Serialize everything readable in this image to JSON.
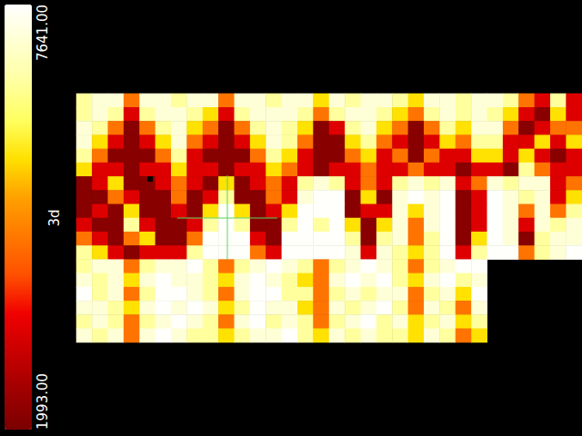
{
  "chart_data": {
    "type": "heatmap",
    "ylabel": "3d",
    "tick_labels": false,
    "cells": [
      [
        6600,
        7200,
        7200,
        4500,
        7200,
        7200,
        6600,
        7200,
        7200,
        4500,
        7200,
        7200,
        6600,
        7200,
        7200,
        5600,
        7200,
        6600,
        7200,
        7200,
        6600,
        5600,
        7200,
        7200,
        6600,
        7200,
        7200,
        6600,
        4500,
        3300,
        6600,
        3300
      ],
      [
        6600,
        7200,
        6600,
        3300,
        6600,
        7200,
        7200,
        6600,
        5600,
        3300,
        6600,
        7200,
        7200,
        7200,
        6600,
        4500,
        6600,
        7200,
        7200,
        6600,
        5600,
        4500,
        6600,
        7200,
        6600,
        7200,
        6600,
        5600,
        3300,
        2200,
        5600,
        3300
      ],
      [
        7200,
        6600,
        4500,
        2200,
        4500,
        6600,
        7200,
        5600,
        4500,
        2200,
        4500,
        6600,
        7200,
        6600,
        5600,
        2200,
        3300,
        6600,
        7200,
        5600,
        4500,
        2200,
        4500,
        6600,
        5600,
        7200,
        7200,
        4500,
        2200,
        3300,
        4500,
        4500
      ],
      [
        7200,
        5600,
        3300,
        2200,
        3300,
        5600,
        7200,
        4500,
        3300,
        2200,
        3300,
        5600,
        7200,
        6600,
        4500,
        2200,
        2200,
        5600,
        6600,
        4500,
        3300,
        2200,
        3300,
        5600,
        4500,
        6600,
        6600,
        3300,
        3300,
        5600,
        3300,
        5600
      ],
      [
        6600,
        4500,
        2200,
        2200,
        2200,
        4500,
        6600,
        3300,
        2200,
        2200,
        2200,
        4500,
        6600,
        5600,
        3300,
        2200,
        2200,
        4500,
        5600,
        3300,
        4500,
        2200,
        4500,
        3300,
        3300,
        5600,
        5600,
        3300,
        5600,
        3300,
        2200,
        3300
      ],
      [
        5600,
        3300,
        3300,
        2200,
        3300,
        3300,
        5600,
        3300,
        3300,
        2200,
        3300,
        3300,
        5600,
        4500,
        3300,
        2200,
        3300,
        3300,
        4500,
        3300,
        3300,
        4500,
        3300,
        3300,
        2200,
        3300,
        3300,
        2200,
        6600,
        4500,
        3300,
        3300
      ],
      [
        2200,
        3300,
        5600,
        2200,
        2200,
        3300,
        4500,
        3300,
        2200,
        5600,
        2200,
        3300,
        4500,
        3300,
        6600,
        7200,
        6600,
        3300,
        4500,
        3300,
        6600,
        7200,
        6600,
        7200,
        3300,
        4500,
        7200,
        6600,
        7200,
        7200,
        3300,
        4500
      ],
      [
        2200,
        2200,
        4500,
        3300,
        2200,
        2200,
        4500,
        2200,
        3300,
        6600,
        2200,
        2200,
        4500,
        3300,
        7200,
        7600,
        7600,
        2200,
        5600,
        2200,
        7200,
        7600,
        7200,
        7600,
        2200,
        3300,
        7600,
        7200,
        6600,
        7200,
        3300,
        5600
      ],
      [
        2200,
        3300,
        2200,
        5600,
        2200,
        2200,
        3300,
        2200,
        5600,
        7600,
        5600,
        2200,
        3300,
        5600,
        7600,
        7600,
        7600,
        2200,
        3300,
        3300,
        7200,
        5600,
        7200,
        7600,
        2200,
        3300,
        7600,
        7200,
        4500,
        7200,
        4500,
        6600
      ],
      [
        3300,
        2200,
        2200,
        6600,
        3300,
        2200,
        2200,
        3300,
        6600,
        7600,
        6600,
        2200,
        2200,
        6600,
        7600,
        6600,
        7600,
        5600,
        2200,
        5600,
        7200,
        4500,
        7200,
        7600,
        2200,
        3300,
        7600,
        7200,
        3300,
        7200,
        6600,
        7200
      ],
      [
        4500,
        3300,
        2200,
        4500,
        5600,
        2200,
        2200,
        4500,
        7600,
        7600,
        7600,
        3300,
        2200,
        7600,
        7600,
        7600,
        7600,
        6600,
        2200,
        6600,
        7200,
        4500,
        6600,
        7600,
        2200,
        5600,
        7600,
        7200,
        2200,
        6600,
        7200,
        7200
      ],
      [
        6600,
        5600,
        3300,
        2200,
        3300,
        3300,
        3300,
        6600,
        7600,
        7600,
        7600,
        4500,
        3300,
        7600,
        7600,
        7600,
        7600,
        7200,
        3300,
        7200,
        6600,
        5600,
        6600,
        7600,
        3300,
        6600,
        7600,
        7600,
        4500,
        6600,
        7200,
        7600
      ],
      [
        6600,
        7200,
        7200,
        4500,
        6600,
        7200,
        7200,
        7600,
        6600,
        4500,
        6600,
        7200,
        7600,
        7200,
        6600,
        4500,
        6600,
        7200,
        7600,
        7200,
        6600,
        4500,
        6600,
        7200,
        7600,
        7600,
        null,
        null,
        null,
        null,
        null,
        null
      ],
      [
        7200,
        6600,
        7200,
        5600,
        7200,
        7600,
        7200,
        7200,
        6600,
        5600,
        7200,
        7600,
        7200,
        6600,
        5600,
        4500,
        7200,
        7600,
        7200,
        7600,
        6600,
        5600,
        7200,
        7600,
        6600,
        7200,
        null,
        null,
        null,
        null,
        null,
        null
      ],
      [
        7600,
        6600,
        7200,
        4500,
        6600,
        7600,
        7600,
        7200,
        6600,
        4500,
        7200,
        7600,
        7600,
        6600,
        6600,
        4500,
        6600,
        7200,
        6600,
        7200,
        7200,
        4500,
        6600,
        7200,
        5600,
        7600,
        null,
        null,
        null,
        null,
        null,
        null
      ],
      [
        7200,
        7200,
        6600,
        5600,
        7200,
        7600,
        7200,
        7600,
        7200,
        5600,
        6600,
        7600,
        7200,
        7200,
        5600,
        4500,
        7200,
        6600,
        7200,
        7600,
        6600,
        4500,
        7200,
        6600,
        4500,
        7200,
        null,
        null,
        null,
        null,
        null,
        null
      ],
      [
        6600,
        7200,
        6600,
        4500,
        6600,
        7200,
        7600,
        7200,
        6600,
        4500,
        7200,
        7600,
        6600,
        7200,
        6600,
        4500,
        6600,
        7200,
        7600,
        6600,
        7200,
        5600,
        6600,
        7200,
        5600,
        6600,
        null,
        null,
        null,
        null,
        null,
        null
      ],
      [
        7200,
        6600,
        7200,
        4500,
        7200,
        7600,
        7200,
        6600,
        6600,
        5600,
        6600,
        7200,
        7200,
        7600,
        6600,
        5600,
        7200,
        6600,
        7200,
        6600,
        6600,
        5600,
        7200,
        6600,
        4500,
        5600,
        null,
        null,
        null,
        null,
        null,
        null
      ]
    ],
    "colorbar": {
      "range": [
        1993,
        7641
      ],
      "ticks": [
        {
          "value": 7641,
          "label": "7641.00"
        },
        {
          "value": 1993,
          "label": "1993.00"
        }
      ]
    }
  }
}
